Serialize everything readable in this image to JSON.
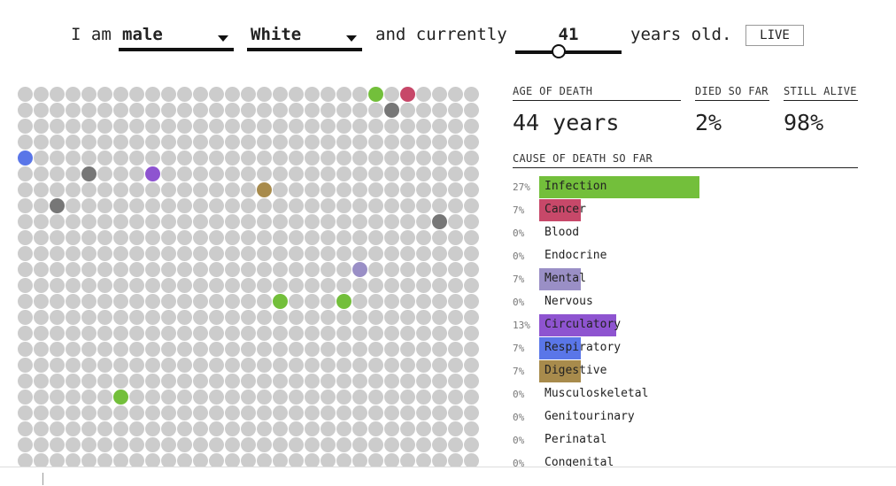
{
  "intro": {
    "prefix": "I am",
    "sex": "male",
    "race": "White",
    "middle": "and currently",
    "age": "41",
    "suffix": "years old.",
    "live_button": "LIVE",
    "age_slider_fraction": 0.41
  },
  "stats": {
    "age_of_death_label": "AGE OF DEATH",
    "age_of_death_value": "44 years",
    "died_label": "DIED SO FAR",
    "died_value": "2%",
    "alive_label": "STILL ALIVE",
    "alive_value": "98%"
  },
  "causes_title": "CAUSE OF DEATH SO FAR",
  "causes": [
    {
      "pct": "27%",
      "name": "Infection",
      "value": 27,
      "color": "#73bf3b"
    },
    {
      "pct": "7%",
      "name": "Cancer",
      "value": 7,
      "color": "#c74869"
    },
    {
      "pct": "0%",
      "name": "Blood",
      "value": 0,
      "color": "#cccccc"
    },
    {
      "pct": "0%",
      "name": "Endocrine",
      "value": 0,
      "color": "#cccccc"
    },
    {
      "pct": "7%",
      "name": "Mental",
      "value": 7,
      "color": "#9a8fc6"
    },
    {
      "pct": "0%",
      "name": "Nervous",
      "value": 0,
      "color": "#cccccc"
    },
    {
      "pct": "13%",
      "name": "Circulatory",
      "value": 13,
      "color": "#8e54d0"
    },
    {
      "pct": "7%",
      "name": "Respiratory",
      "value": 7,
      "color": "#5a76e8"
    },
    {
      "pct": "7%",
      "name": "Digestive",
      "value": 7,
      "color": "#a88b4c"
    },
    {
      "pct": "0%",
      "name": "Musculoskeletal",
      "value": 0,
      "color": "#cccccc"
    },
    {
      "pct": "0%",
      "name": "Genitourinary",
      "value": 0,
      "color": "#cccccc"
    },
    {
      "pct": "0%",
      "name": "Perinatal",
      "value": 0,
      "color": "#cccccc"
    },
    {
      "pct": "0%",
      "name": "Congenital",
      "value": 0,
      "color": "#cccccc"
    }
  ],
  "grid": {
    "cols": 29,
    "rows": 24,
    "alive_color": "#cccccc",
    "dead_color": "#777777",
    "colored_dots": [
      {
        "col": 22,
        "row": 0,
        "color": "#73bf3b"
      },
      {
        "col": 24,
        "row": 0,
        "color": "#c74869"
      },
      {
        "col": 23,
        "row": 1,
        "color": "#777777"
      },
      {
        "col": 0,
        "row": 4,
        "color": "#5a76e8"
      },
      {
        "col": 4,
        "row": 5,
        "color": "#777777"
      },
      {
        "col": 8,
        "row": 5,
        "color": "#8e54d0"
      },
      {
        "col": 15,
        "row": 6,
        "color": "#a88b4c"
      },
      {
        "col": 2,
        "row": 7,
        "color": "#777777"
      },
      {
        "col": 26,
        "row": 8,
        "color": "#777777"
      },
      {
        "col": 21,
        "row": 11,
        "color": "#9a8fc6"
      },
      {
        "col": 16,
        "row": 13,
        "color": "#73bf3b"
      },
      {
        "col": 20,
        "row": 13,
        "color": "#73bf3b"
      },
      {
        "col": 6,
        "row": 19,
        "color": "#73bf3b"
      }
    ]
  }
}
